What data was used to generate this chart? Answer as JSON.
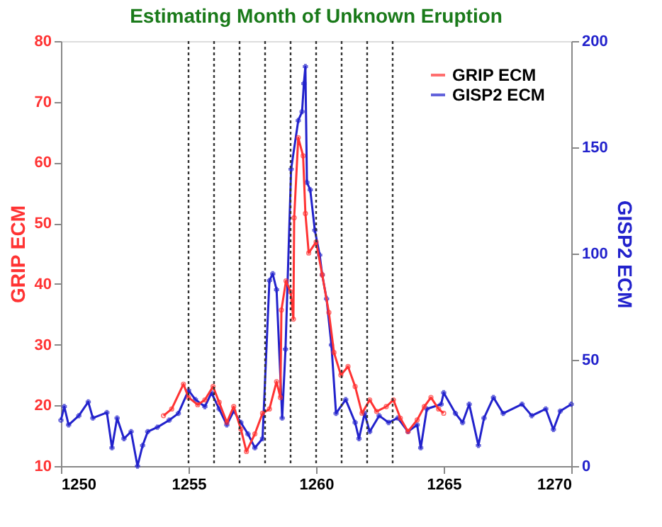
{
  "chart_data": {
    "type": "line",
    "title": "Estimating Month of Unknown Eruption",
    "ylabel": "GRIP ECM",
    "y2label": "GISP2 ECM",
    "xlim": [
      1250,
      1270
    ],
    "xticks": [
      1250,
      1255,
      1260,
      1265,
      1270
    ],
    "ylim": [
      10,
      80
    ],
    "yticks": [
      10,
      20,
      30,
      40,
      50,
      60,
      70,
      80
    ],
    "y2lim": [
      0,
      200
    ],
    "y2ticks": [
      0,
      50,
      100,
      150,
      200
    ],
    "grid": false,
    "legend": "top right",
    "line_style": "solid",
    "series": [
      {
        "name": "GRIP ECM",
        "color": "#ff3333",
        "marker": "circle",
        "x": [
          1254.02,
          1254.34,
          1254.8,
          1255.0,
          1255.36,
          1255.64,
          1255.96,
          1256.2,
          1256.5,
          1256.77,
          1257.05,
          1257.27,
          1257.6,
          1257.9,
          1258.17,
          1258.45,
          1258.6,
          1258.64,
          1258.82,
          1259.0,
          1259.11,
          1259.14,
          1259.3,
          1259.49,
          1259.58,
          1259.71,
          1260.0,
          1260.24,
          1260.5,
          1260.7,
          1260.97,
          1261.25,
          1261.53,
          1261.8,
          1262.1,
          1262.37,
          1262.75,
          1263.03,
          1263.3,
          1263.6,
          1263.96,
          1264.24,
          1264.5,
          1264.8,
          1265.0
        ],
        "values": [
          18.3,
          19.4,
          23.5,
          21.3,
          20.1,
          20.9,
          23.1,
          20.5,
          17.2,
          19.8,
          16.1,
          12.4,
          15.3,
          18.7,
          19.4,
          23.9,
          21.3,
          35.7,
          40.5,
          38.7,
          34.2,
          50.9,
          64.1,
          61.1,
          51.6,
          45.1,
          46.9,
          41.5,
          35.3,
          28.7,
          25,
          26.4,
          23.1,
          18.7,
          20.9,
          19,
          19.8,
          20.9,
          17.9,
          15.7,
          17.6,
          19.8,
          21.3,
          19.4,
          18.7
        ]
      },
      {
        "name": "GISP2 ECM",
        "color": "#2222cc",
        "marker": "cross",
        "axis": "y2",
        "x": [
          1250.0,
          1250.13,
          1250.3,
          1250.7,
          1251.07,
          1251.25,
          1251.8,
          1252.0,
          1252.2,
          1252.47,
          1252.75,
          1253.0,
          1253.2,
          1253.4,
          1253.78,
          1254.24,
          1254.6,
          1255.0,
          1255.27,
          1255.64,
          1255.9,
          1256.2,
          1256.5,
          1256.77,
          1257.05,
          1257.33,
          1257.6,
          1257.9,
          1258.17,
          1258.3,
          1258.45,
          1258.67,
          1258.8,
          1259.02,
          1259.3,
          1259.45,
          1259.52,
          1259.58,
          1259.64,
          1259.77,
          1259.95,
          1260.14,
          1260.24,
          1260.41,
          1260.6,
          1260.78,
          1261.16,
          1261.53,
          1261.68,
          1261.9,
          1262.1,
          1262.47,
          1262.84,
          1263.2,
          1263.6,
          1263.96,
          1264.1,
          1264.34,
          1264.9,
          1265.0,
          1265.46,
          1265.74,
          1266.0,
          1266.36,
          1266.58,
          1266.95,
          1267.33,
          1268.07,
          1268.45,
          1269.0,
          1269.3,
          1269.57,
          1270.0
        ],
        "values": [
          21.6,
          28,
          19.4,
          23.7,
          30.2,
          22.6,
          25.2,
          8.6,
          22.6,
          12.9,
          16.2,
          0,
          9.7,
          16.2,
          18.3,
          21.6,
          24.8,
          35.6,
          31.3,
          28,
          34.5,
          26.9,
          19.4,
          25.9,
          20.5,
          15.1,
          8.6,
          12.9,
          87.3,
          90.5,
          83,
          22.6,
          55,
          139.7,
          162.6,
          166.8,
          180,
          188,
          133.5,
          130,
          111,
          99.3,
          90,
          78.7,
          57,
          24.8,
          31.3,
          20.5,
          12.9,
          24.8,
          16.2,
          23.7,
          20.5,
          22.6,
          16.2,
          19.4,
          8.6,
          26.9,
          29.1,
          34.5,
          24.8,
          20.5,
          29.1,
          9.7,
          22.6,
          32.3,
          24.8,
          29.1,
          23.7,
          26.9,
          17.2,
          25.9,
          29.1
        ]
      }
    ],
    "ref_lines": [
      {
        "axis": "x",
        "value": 1255,
        "color": "#333333",
        "line_style": "dotted"
      },
      {
        "axis": "x",
        "value": 1256,
        "color": "#333333",
        "line_style": "dotted"
      },
      {
        "axis": "x",
        "value": 1257,
        "color": "#333333",
        "line_style": "dotted"
      },
      {
        "axis": "x",
        "value": 1258,
        "color": "#333333",
        "line_style": "dotted"
      },
      {
        "axis": "x",
        "value": 1259,
        "color": "#333333",
        "line_style": "dotted"
      },
      {
        "axis": "x",
        "value": 1260,
        "color": "#333333",
        "line_style": "dotted"
      },
      {
        "axis": "x",
        "value": 1261,
        "color": "#333333",
        "line_style": "dotted"
      },
      {
        "axis": "x",
        "value": 1262,
        "color": "#333333",
        "line_style": "dotted"
      },
      {
        "axis": "x",
        "value": 1263,
        "color": "#333333",
        "line_style": "dotted"
      }
    ]
  }
}
